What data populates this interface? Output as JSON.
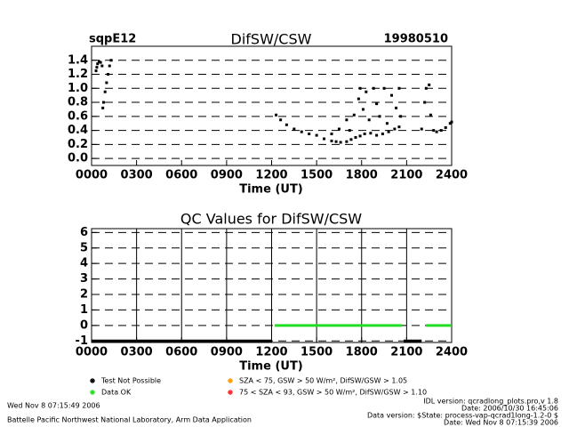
{
  "chart_data": [
    {
      "type": "scatter",
      "title": "DifSW/CSW",
      "left_label": "sqpE12",
      "right_label": "19980510",
      "x_label": "Time (UT)",
      "xlim": [
        0,
        24
      ],
      "xticks": [
        {
          "value": 0,
          "label": "0000"
        },
        {
          "value": 3,
          "label": "0300"
        },
        {
          "value": 6,
          "label": "0600"
        },
        {
          "value": 9,
          "label": "0900"
        },
        {
          "value": 12,
          "label": "1200"
        },
        {
          "value": 15,
          "label": "1500"
        },
        {
          "value": 18,
          "label": "1800"
        },
        {
          "value": 21,
          "label": "2100"
        },
        {
          "value": 24,
          "label": "2400"
        }
      ],
      "ylim": [
        -0.1,
        1.6
      ],
      "yticks": [
        {
          "value": 0,
          "label": "0.0"
        },
        {
          "value": 0.2,
          "label": "0.2"
        },
        {
          "value": 0.4,
          "label": "0.4"
        },
        {
          "value": 0.6,
          "label": "0.6"
        },
        {
          "value": 0.8,
          "label": "0.8"
        },
        {
          "value": 1,
          "label": "1.0"
        },
        {
          "value": 1.2,
          "label": "1.2"
        },
        {
          "value": 1.4,
          "label": "1.4"
        }
      ],
      "grid": true,
      "color": "#000000",
      "x": [
        0.3,
        0.35,
        0.4,
        0.5,
        0.6,
        0.7,
        0.75,
        0.8,
        0.9,
        1.0,
        1.1,
        1.2,
        1.3,
        12.3,
        12.6,
        13.0,
        13.5,
        14.0,
        14.5,
        15.0,
        15.5,
        16.0,
        16.3,
        16.6,
        17.0,
        17.3,
        17.6,
        17.9,
        18.2,
        18.6,
        19.0,
        19.4,
        19.8,
        20.2,
        20.5,
        16.0,
        16.5,
        17.0,
        17.2,
        17.5,
        17.8,
        17.9,
        18.1,
        18.3,
        18.5,
        18.8,
        19.0,
        19.2,
        19.5,
        19.7,
        20.0,
        20.3,
        20.5,
        20.6,
        22.0,
        22.2,
        22.3,
        22.5,
        22.6,
        22.8,
        23.0,
        23.3,
        23.6,
        23.9,
        24.0
      ],
      "values": [
        1.25,
        1.3,
        1.35,
        1.38,
        1.37,
        1.32,
        0.72,
        0.8,
        0.95,
        1.08,
        1.2,
        1.32,
        1.4,
        0.62,
        0.55,
        0.48,
        0.42,
        0.38,
        0.35,
        0.33,
        0.28,
        0.25,
        0.24,
        0.23,
        0.24,
        0.27,
        0.3,
        0.32,
        0.35,
        0.36,
        0.33,
        0.35,
        0.38,
        0.42,
        0.45,
        0.35,
        0.42,
        0.55,
        0.4,
        0.62,
        0.85,
        1.0,
        0.7,
        0.95,
        0.55,
        1.0,
        0.78,
        0.6,
        1.0,
        0.5,
        0.9,
        0.72,
        1.0,
        0.6,
        0.42,
        0.8,
        1.0,
        1.05,
        0.62,
        0.4,
        0.38,
        0.4,
        0.44,
        0.5,
        0.52
      ]
    },
    {
      "type": "line",
      "title": "QC Values for DifSW/CSW",
      "x_label": "Time (UT)",
      "xlim": [
        0,
        24
      ],
      "xticks": [
        {
          "value": 0,
          "label": "0000"
        },
        {
          "value": 3,
          "label": "0300"
        },
        {
          "value": 6,
          "label": "0600"
        },
        {
          "value": 9,
          "label": "0900"
        },
        {
          "value": 12,
          "label": "1200"
        },
        {
          "value": 15,
          "label": "1500"
        },
        {
          "value": 18,
          "label": "1800"
        },
        {
          "value": 21,
          "label": "2100"
        },
        {
          "value": 24,
          "label": "2400"
        }
      ],
      "ylim": [
        -1.1,
        6.25
      ],
      "yticks": [
        -1,
        0,
        1,
        2,
        3,
        4,
        5,
        6
      ],
      "grid": true,
      "xgrid": true,
      "series": [
        {
          "name": "Test Not Possible",
          "color": "#000000",
          "x": [
            0,
            12.0,
            12.1,
            20.8,
            22.0
          ],
          "values": [
            -1,
            -1,
            null,
            -1,
            -1
          ]
        },
        {
          "name": "Data OK",
          "color": "#22dd22",
          "x": [
            12.2,
            20.7,
            21.5,
            22.3,
            24
          ],
          "values": [
            0,
            0,
            null,
            0,
            0
          ]
        },
        {
          "name": "SZA < 75, GSW > 50 W/m², DifSW/GSW > 1.05",
          "color": "#ff9900",
          "x": [],
          "values": []
        },
        {
          "name": "75 < SZA < 93, GSW > 50 W/m², DifSW/GSW > 1.10",
          "color": "#ff2222",
          "x": [],
          "values": []
        }
      ]
    }
  ],
  "footer": {
    "timestamp": "Wed Nov  8 07:15:49 2006",
    "lab": "Battelle Pacific Northwest National Laboratory, Arm Data Application",
    "idl_version": "IDL version: qcradlong_plots.pro,v 1.8",
    "idl_date": "Date: 2006/10/30 16:45:06",
    "data_version": "Data version: $State: process-vap-qcrad1long-1.2-0 $",
    "data_date": "Date: Wed Nov  8 07:15:39 2006"
  }
}
